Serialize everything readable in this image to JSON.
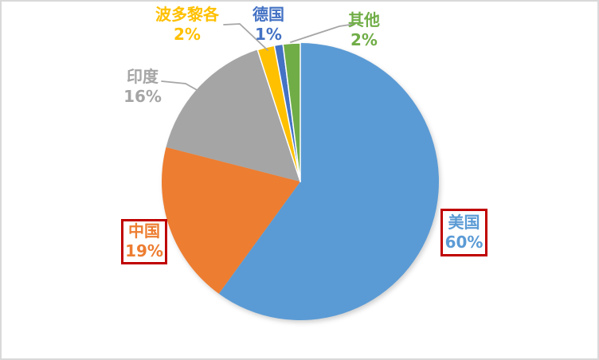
{
  "chart_data": {
    "type": "pie",
    "title": "",
    "legend_position": "none",
    "data_labels": "category-name-and-percent-outside",
    "start_angle_deg": 0,
    "direction": "clockwise",
    "series": [
      {
        "key": "usa",
        "label": "美国",
        "value": 60,
        "pct": "60%",
        "color": "#5B9BD5",
        "white_outline": false,
        "callout_box": true
      },
      {
        "key": "china",
        "label": "中国",
        "value": 19,
        "pct": "19%",
        "color": "#ED7D31",
        "white_outline": false,
        "callout_box": true
      },
      {
        "key": "india",
        "label": "印度",
        "value": 16,
        "pct": "16%",
        "color": "#A5A5A5",
        "white_outline": false,
        "callout_box": false
      },
      {
        "key": "puerto-rico",
        "label": "波多黎各",
        "value": 2,
        "pct": "2%",
        "color": "#FFC000",
        "white_outline": true,
        "callout_box": false
      },
      {
        "key": "germany",
        "label": "德国",
        "value": 1,
        "pct": "1%",
        "color": "#4472C4",
        "white_outline": true,
        "callout_box": false
      },
      {
        "key": "other",
        "label": "其他",
        "value": 2,
        "pct": "2%",
        "color": "#70AD47",
        "white_outline": true,
        "callout_box": false
      }
    ]
  },
  "styles": {
    "callout_border_color": "#C00000",
    "leader_line_color": "#A6A6A6",
    "frame_border_color": "#D9D9D9",
    "background_color": "#FFFFFF"
  }
}
